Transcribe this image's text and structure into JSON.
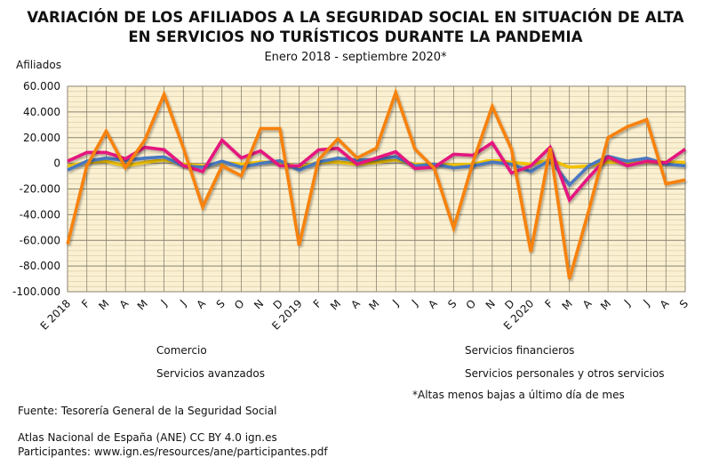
{
  "chart_data": {
    "type": "line",
    "title": "VARIACIÓN DE LOS AFILIADOS A LA SEGURIDAD SOCIAL EN SITUACIÓN DE ALTA",
    "title_line2": "EN SERVICIOS NO TURÍSTICOS DURANTE LA PANDEMIA",
    "subtitle": "Enero 2018 - septiembre 2020*",
    "ylabel": "Afiliados",
    "xlabel": "",
    "ylim": [
      -100000,
      60000
    ],
    "yticks": [
      60000,
      40000,
      20000,
      0,
      -20000,
      -40000,
      -60000,
      -80000,
      -100000
    ],
    "ytick_labels": [
      "60.000",
      "40.000",
      "20.000",
      "0",
      "-20.000",
      "-40.000",
      "-60.000",
      "-80.000",
      "-100.000"
    ],
    "grid": true,
    "legend_placement": "bottom",
    "background_color": "#fbf1d2",
    "categories": [
      "E 2018",
      "F",
      "M",
      "A",
      "M",
      "J",
      "J",
      "A",
      "S",
      "O",
      "N",
      "D",
      "E 2019",
      "F",
      "M",
      "A",
      "M",
      "J",
      "J",
      "A",
      "S",
      "O",
      "N",
      "D",
      "E 2020",
      "F",
      "M",
      "A",
      "M",
      "J",
      "J",
      "A",
      "S"
    ],
    "series": [
      {
        "name": "Servicios financieros",
        "color": "#f2c200",
        "values": [
          -2000,
          700,
          1600,
          -2000,
          700,
          2800,
          -700,
          -2000,
          700,
          -700,
          1000,
          700,
          -3000,
          700,
          1000,
          -700,
          700,
          2800,
          -700,
          -700,
          -1200,
          -700,
          2800,
          700,
          -700,
          2800,
          -3000,
          -2000,
          1000,
          700,
          1000,
          1000,
          700
        ]
      },
      {
        "name": "Servicios personales y otros servicios",
        "color": "#4a78c0",
        "values": [
          -5300,
          1600,
          4000,
          2300,
          4000,
          5000,
          -2000,
          -3000,
          1600,
          -3000,
          0,
          2000,
          -5300,
          1000,
          4000,
          2300,
          3200,
          5000,
          -2000,
          -700,
          -3500,
          -2000,
          1000,
          -700,
          -6400,
          2800,
          -16800,
          -2000,
          5500,
          1600,
          4000,
          -700,
          -1900
        ]
      },
      {
        "name": "Servicios avanzados",
        "color": "#e5127f",
        "values": [
          1600,
          8500,
          8500,
          3500,
          12500,
          10600,
          -1800,
          -6400,
          18000,
          4200,
          9700,
          -2000,
          -1900,
          10400,
          11700,
          -700,
          4200,
          9000,
          -4000,
          -3000,
          7000,
          6200,
          16000,
          -7600,
          -2000,
          12500,
          -28500,
          -11000,
          5000,
          -2000,
          1600,
          500,
          11000
        ]
      },
      {
        "name": "Comercio",
        "color": "#f7820f",
        "values": [
          -63000,
          -2000,
          25000,
          -3500,
          18000,
          53700,
          12000,
          -34000,
          -2000,
          -9700,
          27000,
          27000,
          -64000,
          2700,
          19000,
          4200,
          11800,
          55000,
          11000,
          -4000,
          -50500,
          700,
          44400,
          11000,
          -69000,
          12000,
          -90000,
          -37000,
          20000,
          28500,
          34000,
          -16000,
          -13000
        ]
      }
    ],
    "legend": [
      "Comercio",
      "Servicios financieros",
      "Servicios avanzados",
      "Servicios personales y otros servicios"
    ],
    "note": "*Altas menos bajas a último día de mes"
  },
  "footer": {
    "source": "Fuente: Tesorería General de la Seguridad Social",
    "atlas": "Atlas Nacional de España (ANE) CC BY 4.0 ign.es",
    "participants": "Participantes: www.ign.es/resources/ane/participantes.pdf"
  }
}
